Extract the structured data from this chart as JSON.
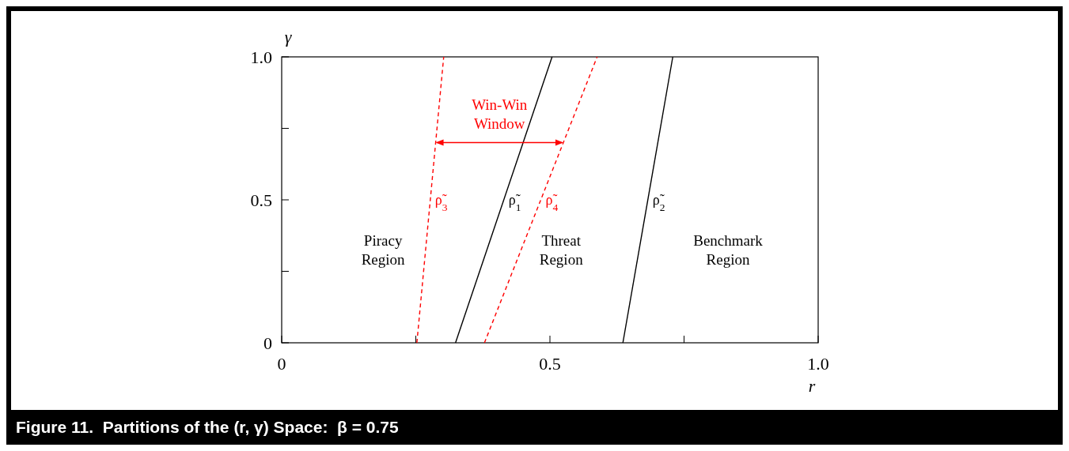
{
  "chart_data": {
    "type": "line",
    "title": "Figure 11.  Partitions of the (r, γ) Space:  β = 0.75",
    "xlabel": "r",
    "ylabel": "γ",
    "xlim": [
      0,
      1
    ],
    "ylim": [
      0,
      1
    ],
    "xticks": [
      0,
      {
        "value": 0.25,
        "label": null
      },
      {
        "value": 0.5,
        "label": "0.5"
      },
      {
        "value": 0.75,
        "label": null
      },
      {
        "value": 1,
        "label": "1.0"
      }
    ],
    "yticks": [
      0,
      {
        "value": 0.25,
        "label": null
      },
      {
        "value": 0.5,
        "label": "0.5"
      },
      {
        "value": 0.75,
        "label": null
      },
      {
        "value": 1,
        "label": "1.0"
      }
    ],
    "grid": false,
    "marker": "none",
    "series": [
      {
        "name": "ρ̃$_{3}$",
        "color": "#ff0000",
        "line_style": "dashed",
        "x": [
          0.252,
          0.302
        ],
        "values": [
          0,
          1
        ]
      },
      {
        "name": "ρ̃$_{1}$",
        "color": "#000000",
        "line_style": "solid",
        "x": [
          0.324,
          0.504
        ],
        "values": [
          0,
          1
        ]
      },
      {
        "name": "ρ̃$_{4}$",
        "color": "#ff0000",
        "line_style": "dashed",
        "x": [
          0.378,
          0.588
        ],
        "values": [
          0,
          1
        ]
      },
      {
        "name": "ρ̃$_{2}$",
        "color": "#000000",
        "line_style": "solid",
        "x": [
          0.636,
          0.729
        ],
        "values": [
          0,
          1
        ]
      }
    ],
    "annotations": [
      "Win-Win Window",
      "Piracy Region",
      "Threat Region",
      "Benchmark Region"
    ]
  }
}
